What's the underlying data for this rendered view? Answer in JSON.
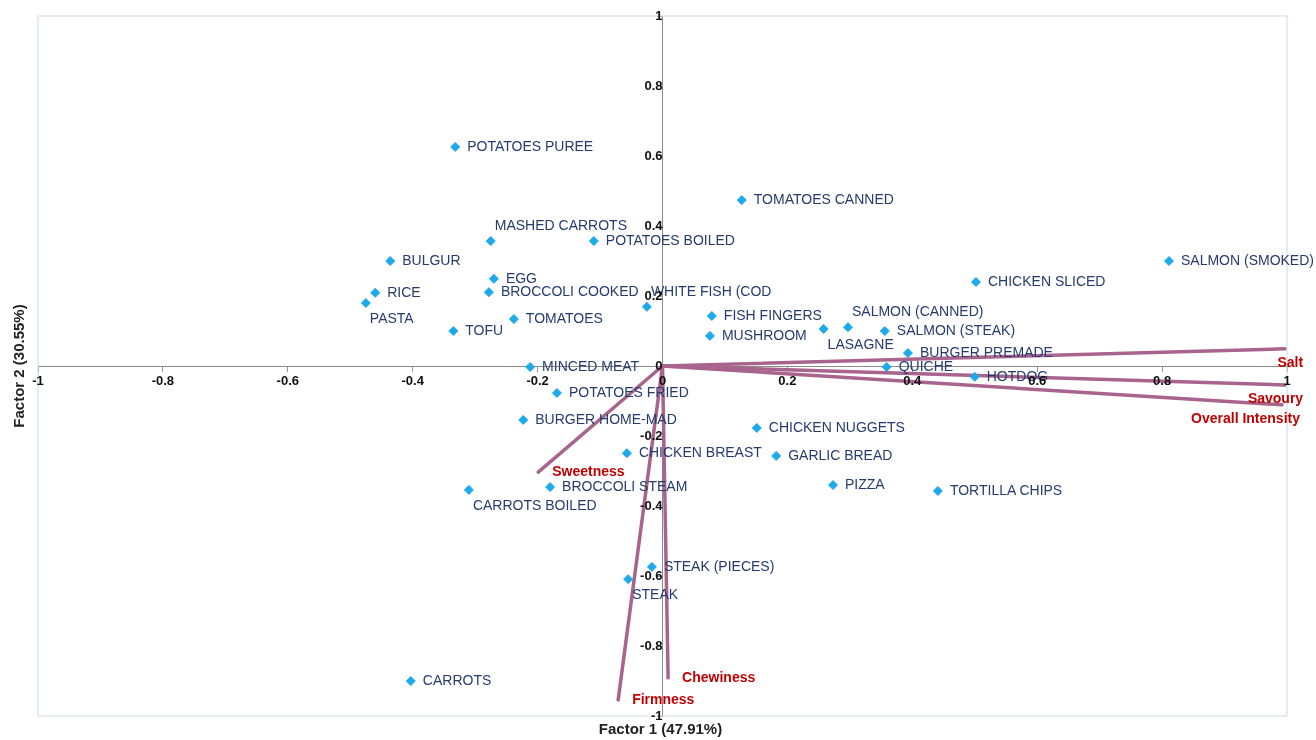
{
  "chart_data": {
    "type": "scatter",
    "xlabel": "Factor 1 (47.91%)",
    "ylabel": "Factor 2 (30.55%)",
    "xlim": [
      -1,
      1
    ],
    "ylim": [
      -1,
      1
    ],
    "xticks": [
      -1,
      -0.8,
      -0.6,
      -0.4,
      -0.2,
      0,
      0.2,
      0.4,
      0.6,
      0.8,
      1
    ],
    "yticks": [
      -1,
      -0.8,
      -0.6,
      -0.4,
      -0.2,
      0,
      0.2,
      0.4,
      0.6,
      0.8,
      1
    ],
    "grid": false,
    "legend": false,
    "series": [
      {
        "marker": "diamond",
        "color": "#1eaaea",
        "x": [
          -0.332,
          0.127,
          -0.275,
          -0.11,
          0.811,
          -0.436,
          -0.27,
          0.502,
          -0.46,
          -0.278,
          -0.475,
          -0.025,
          0.079,
          -0.238,
          0.297,
          0.258,
          0.356,
          -0.335,
          0.076,
          0.393,
          -0.212,
          0.359,
          0.5,
          -0.169,
          -0.223,
          0.151,
          -0.057,
          0.182,
          0.273,
          0.441,
          -0.31,
          -0.18,
          -0.017,
          -0.055,
          -0.403
        ],
        "values": [
          0.626,
          0.474,
          0.357,
          0.357,
          0.3,
          0.3,
          0.249,
          0.24,
          0.209,
          0.211,
          0.18,
          0.169,
          0.143,
          0.134,
          0.111,
          0.106,
          0.1,
          0.1,
          0.086,
          0.037,
          -0.003,
          -0.003,
          -0.031,
          -0.077,
          -0.154,
          -0.177,
          -0.249,
          -0.257,
          -0.34,
          -0.357,
          -0.354,
          -0.346,
          -0.574,
          -0.609,
          -0.9
        ],
        "value_labels": [
          "POTATOES PUREE",
          "TOMATOES CANNED",
          "MASHED CARROTS",
          "POTATOES BOILED",
          "SALMON (SMOKED)",
          "BULGUR",
          "EGG",
          "CHICKEN SLICED",
          "RICE",
          "BROCCOLI COOKED",
          "PASTA",
          "WHITE FISH (COD",
          "FISH FINGERS",
          "TOMATOES",
          "SALMON (CANNED)",
          "LASAGNE",
          "SALMON (STEAK)",
          "TOFU",
          "MUSHROOM",
          "BURGER PREMADE",
          "MINCED MEAT",
          "QUICHE",
          "HOTDOG",
          "POTATOES FRIED",
          "BURGER HOME-MAD",
          "CHICKEN NUGGETS",
          "CHICKEN BREAST",
          "GARLIC BREAD",
          "PIZZA",
          "TORTILLA CHIPS",
          "CARROTS BOILED",
          "BROCCOLI STEAM",
          "STEAK (PIECES)",
          "STEAK",
          "CARROTS"
        ]
      },
      {
        "type": "line",
        "name": "Salt",
        "color": "#a8648c",
        "x": [
          0,
          0.997
        ],
        "values": [
          0,
          0.049
        ],
        "marker": "none"
      },
      {
        "type": "line",
        "name": "Savoury",
        "color": "#a8648c",
        "x": [
          0,
          0.997
        ],
        "values": [
          0,
          -0.054
        ],
        "marker": "none"
      },
      {
        "type": "line",
        "name": "Overall Intensity",
        "color": "#a8648c",
        "x": [
          0,
          0.992
        ],
        "values": [
          0,
          -0.111
        ],
        "marker": "none"
      },
      {
        "type": "line",
        "name": "Sweetness",
        "color": "#a8648c",
        "x": [
          0,
          -0.199
        ],
        "values": [
          0,
          -0.303
        ],
        "marker": "none"
      },
      {
        "type": "line",
        "name": "Firmness",
        "color": "#a8648c",
        "x": [
          0,
          -0.071
        ],
        "values": [
          0,
          -0.954
        ],
        "marker": "none"
      },
      {
        "type": "line",
        "name": "Chewiness",
        "color": "#a8648c",
        "x": [
          0,
          0.009
        ],
        "values": [
          0,
          -0.891
        ],
        "marker": "none"
      }
    ]
  }
}
